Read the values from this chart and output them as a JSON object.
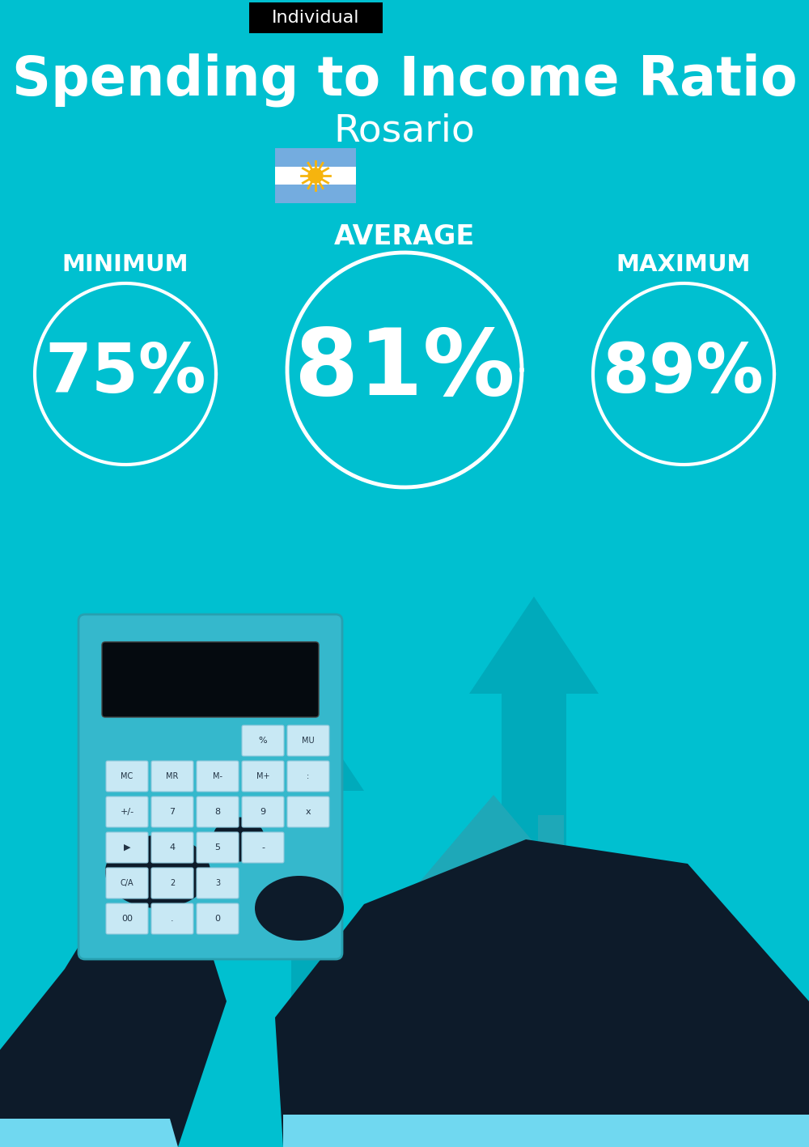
{
  "title": "Spending to Income Ratio",
  "subtitle": "Rosario",
  "tag_label": "Individual",
  "tag_bg": "#000000",
  "tag_text_color": "#ffffff",
  "bg_color": "#00C0D0",
  "text_color": "#ffffff",
  "min_label": "MINIMUM",
  "avg_label": "AVERAGE",
  "max_label": "MAXIMUM",
  "min_value": "75%",
  "avg_value": "81%",
  "max_value": "89%",
  "title_fontsize": 48,
  "subtitle_fontsize": 34,
  "tag_fontsize": 16,
  "avg_value_fontsize": 82,
  "side_value_fontsize": 60,
  "label_fontsize": 22,
  "arrow_color": "#00A8B8",
  "house_color": "#2AB8C8",
  "dark_color": "#0D1B2A",
  "cuff_color": "#70D8F0",
  "calc_color": "#35B8CC",
  "screen_color": "#050A0F",
  "btn_color": "#C8E8F4",
  "money_bag_color": "#2AB0C0",
  "dollar_color": "#D4C060",
  "stack_color": "#C8B840"
}
